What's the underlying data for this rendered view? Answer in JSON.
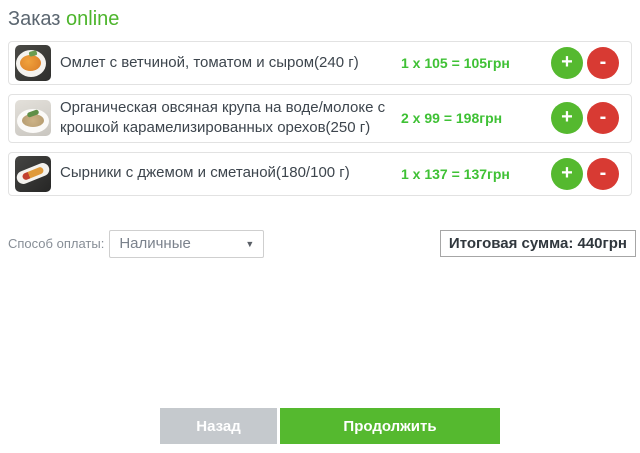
{
  "header": {
    "title_prefix": "Заказ",
    "title_accent": "online"
  },
  "colors": {
    "accent_green": "#55b92f",
    "price_green": "#3fc135",
    "danger_red": "#d83a33",
    "gray_button": "#c5c9cd",
    "title_gray": "#5b6670",
    "item_text": "#3d454d"
  },
  "order": {
    "items": [
      {
        "name": "Омлет с ветчиной, томатом и сыром(240 г)",
        "quantity": 1,
        "unit_price": 105,
        "line_total": 105,
        "price_text": "1 x 105 = 105грн",
        "image": "omelet-with-ham-tomato-cheese-photo"
      },
      {
        "name": "Органическая овсяная крупа на воде/молоке с крошкой карамелизированных орехов(250 г)",
        "quantity": 2,
        "unit_price": 99,
        "line_total": 198,
        "price_text": "2 x 99 = 198грн",
        "image": "organic-oatmeal-bowl-photo"
      },
      {
        "name": "Сырники с джемом и сметаной(180/100 г)",
        "quantity": 1,
        "unit_price": 137,
        "line_total": 137,
        "price_text": "1 x 137 = 137грн",
        "image": "syrniki-with-jam-photo"
      }
    ],
    "increase_label": "+",
    "decrease_label": "-"
  },
  "payment": {
    "label": "Способ оплаты:",
    "selected_option": "Наличные",
    "dropdown_arrow": "▼"
  },
  "total": {
    "text": "Итоговая сумма: 440грн",
    "amount": 440,
    "currency": "грн"
  },
  "footer": {
    "back_label": "Назад",
    "continue_label": "Продолжить"
  }
}
